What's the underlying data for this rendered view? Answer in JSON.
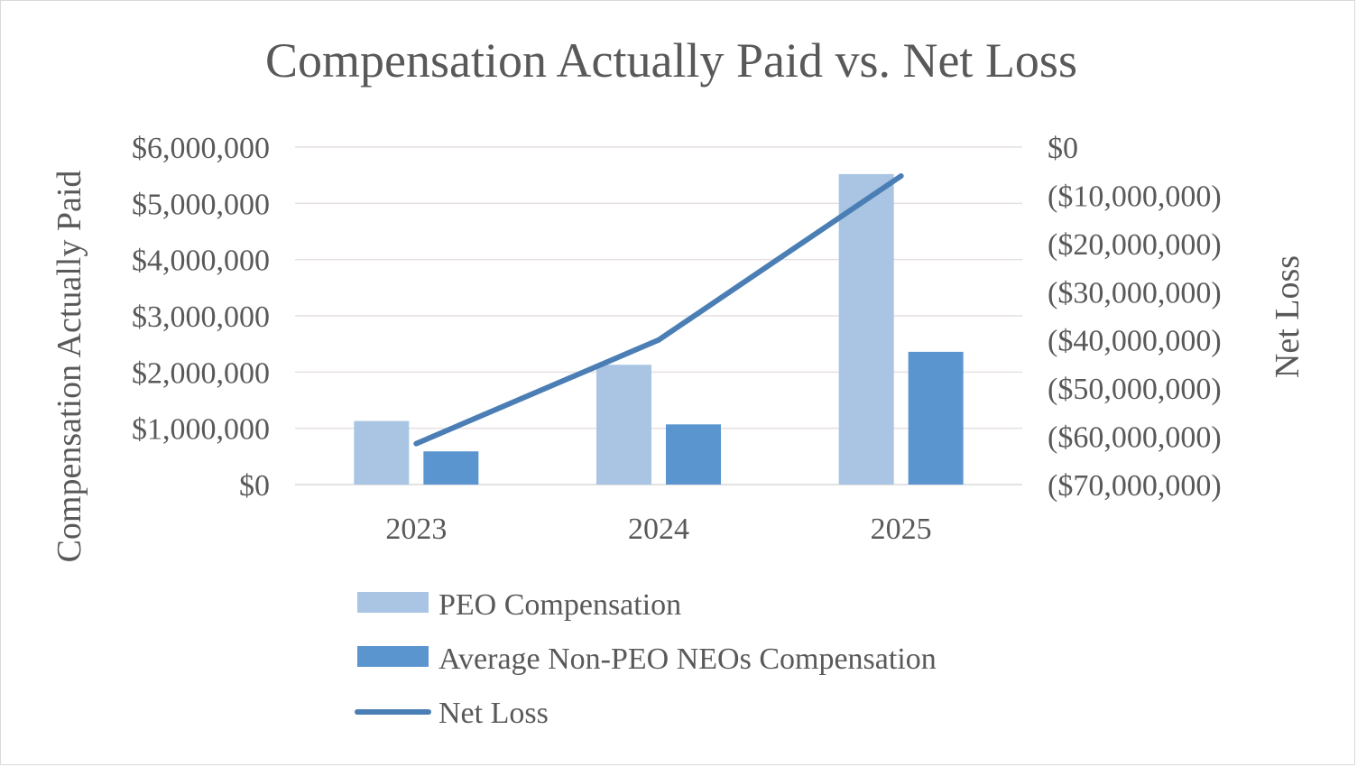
{
  "chart_data": {
    "type": "bar",
    "title": "Compensation Actually Paid vs. Net Loss",
    "categories": [
      "2023",
      "2024",
      "2025"
    ],
    "series": [
      {
        "name": "PEO Compensation",
        "kind": "bar",
        "axis": "left",
        "color": "#a9c5e3",
        "values": [
          1130000,
          2130000,
          5520000
        ]
      },
      {
        "name": "Average Non-PEO NEOs Compensation",
        "kind": "bar",
        "axis": "left",
        "color": "#5b95d0",
        "values": [
          590000,
          1070000,
          2360000
        ]
      },
      {
        "name": "Net Loss",
        "kind": "line",
        "axis": "right",
        "color": "#4a7eb5",
        "values": [
          -61500000,
          -40000000,
          -6000000
        ]
      }
    ],
    "ylabel": "Compensation Actually Paid",
    "y2label": "Net Loss",
    "ylim": [
      0,
      6000000
    ],
    "y2lim": [
      -70000000,
      0
    ],
    "yticks": [
      "$0",
      "$1,000,000",
      "$2,000,000",
      "$3,000,000",
      "$4,000,000",
      "$5,000,000",
      "$6,000,000"
    ],
    "y2ticks": [
      "$0",
      "($10,000,000)",
      "($20,000,000)",
      "($30,000,000)",
      "($40,000,000)",
      "($50,000,000)",
      "($60,000,000)",
      "($70,000,000)"
    ],
    "grid": true,
    "legend_position": "bottom"
  }
}
